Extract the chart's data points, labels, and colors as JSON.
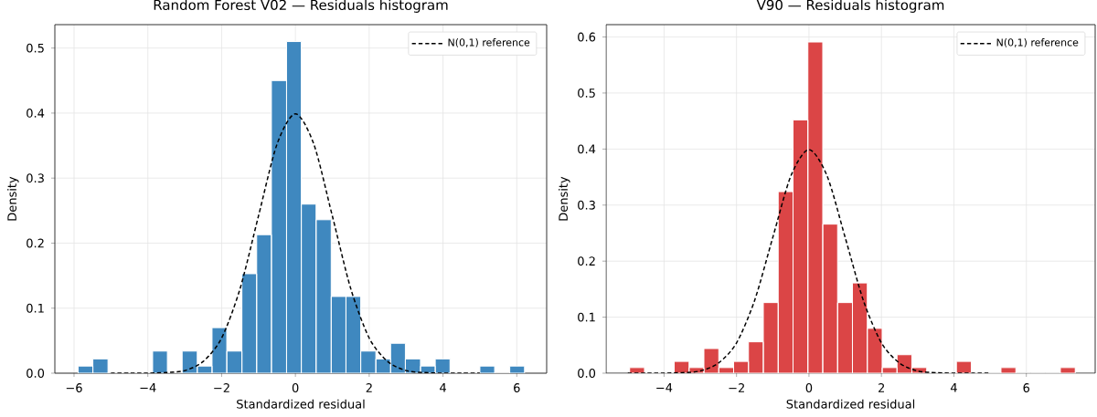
{
  "chart_data": [
    {
      "type": "histogram",
      "title": "Random Forest V02 — Residuals histogram",
      "xlabel": "Standardized residual",
      "ylabel": "Density",
      "color": "#3f88bf",
      "bins": [
        -5.89,
        -5.49,
        -5.08,
        -4.68,
        -4.28,
        -3.87,
        -3.47,
        -3.07,
        -2.66,
        -2.26,
        -1.86,
        -1.45,
        -1.05,
        -0.65,
        -0.24,
        0.16,
        0.56,
        0.97,
        1.37,
        1.77,
        2.18,
        2.58,
        2.98,
        3.39,
        3.79,
        4.19,
        4.6,
        5.0,
        5.4,
        5.81,
        6.21
      ],
      "values": [
        0.011,
        0.022,
        0,
        0,
        0,
        0.034,
        0,
        0.034,
        0.011,
        0.07,
        0.034,
        0.153,
        0.213,
        0.45,
        0.51,
        0.26,
        0.236,
        0.118,
        0.118,
        0.034,
        0.022,
        0.046,
        0.022,
        0.011,
        0.022,
        0,
        0,
        0.011,
        0,
        0.011
      ],
      "series": [
        {
          "type": "line",
          "name": "N(0,1) reference",
          "color": "#000000",
          "line_style": "dashed",
          "marker": "none",
          "x": [
            -5,
            -4.5,
            -4,
            -3.5,
            -3,
            -2.5,
            -2,
            -1.5,
            -1,
            -0.5,
            0,
            0.5,
            1,
            1.5,
            2,
            2.5,
            3,
            3.5,
            4,
            4.5,
            5
          ],
          "values": [
            0,
            0,
            0,
            0.001,
            0.004,
            0.018,
            0.054,
            0.13,
            0.242,
            0.352,
            0.399,
            0.352,
            0.242,
            0.13,
            0.054,
            0.018,
            0.004,
            0.001,
            0,
            0,
            0
          ]
        }
      ],
      "xlim": [
        -6.52,
        6.81
      ],
      "ylim": [
        0,
        0.536
      ],
      "xticks": [
        {
          "value": -6,
          "label": "−6"
        },
        {
          "value": -4,
          "label": "−4"
        },
        {
          "value": -2,
          "label": "−2"
        },
        0,
        2,
        4,
        6
      ],
      "yticks": [
        {
          "value": 0,
          "label": "0.0"
        },
        0.1,
        0.2,
        0.3,
        0.4,
        0.5
      ],
      "grid": true,
      "legend": "top right"
    },
    {
      "type": "histogram",
      "title": "V90 — Residuals histogram",
      "xlabel": "Standardized residual",
      "ylabel": "Density",
      "color": "#db4546",
      "bins": [
        -4.95,
        -4.54,
        -4.13,
        -3.72,
        -3.31,
        -2.9,
        -2.49,
        -2.08,
        -1.67,
        -1.26,
        -0.85,
        -0.44,
        -0.03,
        0.38,
        0.79,
        1.2,
        1.61,
        2.02,
        2.43,
        2.84,
        3.25,
        3.66,
        4.07,
        4.48,
        4.89,
        5.3,
        5.71,
        6.12,
        6.53,
        6.94,
        7.35
      ],
      "values": [
        0.01,
        0,
        0,
        0.021,
        0.01,
        0.044,
        0.01,
        0.021,
        0.056,
        0.126,
        0.324,
        0.452,
        0.591,
        0.266,
        0.126,
        0.161,
        0.08,
        0.01,
        0.033,
        0.01,
        0,
        0,
        0.021,
        0,
        0,
        0.01,
        0,
        0,
        0,
        0.01
      ],
      "series": [
        {
          "type": "line",
          "name": "N(0,1) reference",
          "color": "#000000",
          "line_style": "dashed",
          "marker": "none",
          "x": [
            -5,
            -4.5,
            -4,
            -3.5,
            -3,
            -2.5,
            -2,
            -1.5,
            -1,
            -0.5,
            0,
            0.5,
            1,
            1.5,
            2,
            2.5,
            3,
            3.5,
            4,
            4.5,
            5
          ],
          "values": [
            0,
            0,
            0,
            0.001,
            0.004,
            0.018,
            0.054,
            0.13,
            0.242,
            0.352,
            0.399,
            0.352,
            0.242,
            0.13,
            0.054,
            0.018,
            0.004,
            0.001,
            0,
            0,
            0
          ]
        }
      ],
      "xlim": [
        -5.6,
        7.9
      ],
      "ylim": [
        0,
        0.622
      ],
      "xticks": [
        {
          "value": -4,
          "label": "−4"
        },
        {
          "value": -2,
          "label": "−2"
        },
        0,
        2,
        4,
        6
      ],
      "yticks": [
        {
          "value": 0,
          "label": "0.0"
        },
        0.1,
        0.2,
        0.3,
        0.4,
        0.5,
        0.6
      ],
      "grid": true,
      "legend": "top right"
    }
  ]
}
